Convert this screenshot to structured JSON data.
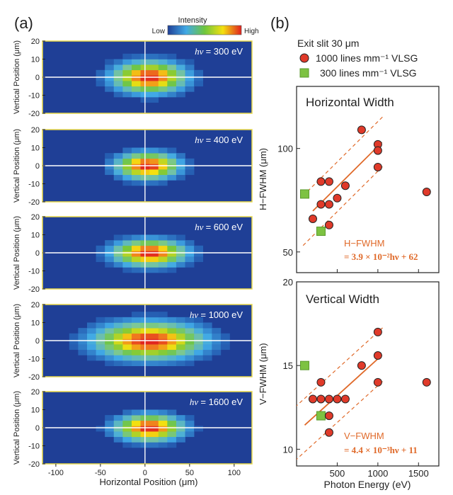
{
  "chart_data": [
    {
      "type": "heatmap",
      "panel_label": "(a)",
      "colorbar": {
        "title": "Intensity",
        "low_label": "Low",
        "high_label": "High"
      },
      "xlabel": "Horizontal Position (μm)",
      "ylabel": "Vertical Position (μm)",
      "xlim": [
        -115,
        120
      ],
      "xticks": [
        "-100",
        "-50",
        "0",
        "50",
        "100"
      ],
      "xtick_values": [
        -100,
        -50,
        0,
        50,
        100
      ],
      "yticks": [
        "-20",
        "-10",
        "0",
        "10",
        "20"
      ],
      "ytick_values": [
        -20,
        -10,
        0,
        10,
        20
      ],
      "ylim": [
        -20,
        20
      ],
      "maps": [
        {
          "energy_label": "= 300 eV",
          "center_x": 5,
          "center_y": 0,
          "sigma_x": 28,
          "sigma_y": 6
        },
        {
          "energy_label": "= 400 eV",
          "center_x": 3,
          "center_y": 0,
          "sigma_x": 24,
          "sigma_y": 5
        },
        {
          "energy_label": "= 600 eV",
          "center_x": 5,
          "center_y": 0,
          "sigma_x": 28,
          "sigma_y": 5
        },
        {
          "energy_label": "= 1000 eV",
          "center_x": 5,
          "center_y": 0,
          "sigma_x": 42,
          "sigma_y": 7
        },
        {
          "energy_label": "= 1600 eV",
          "center_x": 5,
          "center_y": 0,
          "sigma_x": 26,
          "sigma_y": 5
        }
      ]
    },
    {
      "type": "scatter",
      "panel_label": "(b)",
      "legend": {
        "title": "Exit slit  30 μm",
        "items": [
          {
            "name": "1000 lines mm⁻¹ VLSG",
            "marker": "circle",
            "color": "#e03a2a"
          },
          {
            "name": "300 lines mm⁻¹ VLSG",
            "marker": "square",
            "color": "#7dc242"
          }
        ]
      },
      "xlabel": "Photon Energy (eV)",
      "xlim": [
        0,
        1750
      ],
      "xticks": [
        "500",
        "1000",
        "1500"
      ],
      "xtick_values": [
        500,
        1000,
        1500
      ],
      "subplots": [
        {
          "title": "Horizontal Width",
          "ylabel": "H−FWHM (μm)",
          "ylim": [
            40,
            130
          ],
          "yticks": [
            "50",
            "100"
          ],
          "ytick_values": [
            50,
            100
          ],
          "series_1000": {
            "x": [
              200,
              300,
              300,
              400,
              400,
              400,
              500,
              600,
              800,
              1000,
              1000,
              1000,
              1600
            ],
            "y": [
              66,
              73,
              84,
              84,
              73,
              63,
              76,
              82,
              109,
              102,
              99,
              91,
              79
            ]
          },
          "series_300": {
            "x": [
              100,
              300
            ],
            "y": [
              78,
              60
            ]
          },
          "fit": {
            "slope": 0.039,
            "intercept": 62,
            "x_range": [
              200,
              1050
            ],
            "band": 12
          },
          "equation_label": "H−FWHM",
          "equation_text": "= 3.9 × 10⁻²hν + 62"
        },
        {
          "title": "Vertical Width",
          "ylabel": "V−FWHM (μm)",
          "ylim": [
            9,
            20
          ],
          "yticks": [
            "10",
            "15",
            "20"
          ],
          "ytick_values": [
            10,
            15,
            20
          ],
          "series_1000": {
            "x": [
              200,
              300,
              300,
              400,
              400,
              400,
              500,
              600,
              800,
              1000,
              1000,
              1000,
              1600
            ],
            "y": [
              13,
              13,
              14,
              12,
              11,
              13,
              13,
              13,
              15,
              15.6,
              14,
              17,
              14
            ]
          },
          "series_300": {
            "x": [
              100,
              300
            ],
            "y": [
              15,
              12
            ]
          },
          "fit": {
            "slope": 0.0044,
            "intercept": 11,
            "x_range": [
              100,
              1050
            ],
            "band": 1.6
          },
          "equation_label": "V−FWHM",
          "equation_text": "= 4.4 × 10⁻³hν + 11"
        }
      ]
    }
  ]
}
